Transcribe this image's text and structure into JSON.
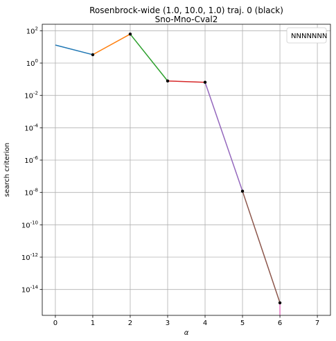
{
  "chart_data": {
    "type": "line",
    "title": "Rosenbrock-wide (1.0, 10.0, 1.0) traj. 0 (black)",
    "subtitle": "Sno-Mno-Cval2",
    "xlabel": "α",
    "ylabel": "search criterion",
    "yscale": "log",
    "xlim": [
      -0.35,
      7.35
    ],
    "ylim_log10": [
      -15.6,
      2.4
    ],
    "grid": true,
    "legend": {
      "placement": "top-right",
      "label": "NNNNNNN"
    },
    "x_ticks": [
      "0",
      "1",
      "2",
      "3",
      "4",
      "5",
      "6",
      "7"
    ],
    "y_ticks": [
      {
        "exp": 2,
        "label": "10",
        "sup": "2"
      },
      {
        "exp": 0,
        "label": "10",
        "sup": "0"
      },
      {
        "exp": -2,
        "label": "10",
        "sup": "-2"
      },
      {
        "exp": -4,
        "label": "10",
        "sup": "-4"
      },
      {
        "exp": -6,
        "label": "10",
        "sup": "-6"
      },
      {
        "exp": -8,
        "label": "10",
        "sup": "-8"
      },
      {
        "exp": -10,
        "label": "10",
        "sup": "-10"
      },
      {
        "exp": -12,
        "label": "10",
        "sup": "-12"
      },
      {
        "exp": -14,
        "label": "10",
        "sup": "-14"
      }
    ],
    "points": [
      {
        "x": 0,
        "y": 13,
        "marker": false
      },
      {
        "x": 1,
        "y": 3.3,
        "marker": true
      },
      {
        "x": 2,
        "y": 62,
        "marker": true
      },
      {
        "x": 3,
        "y": 0.078,
        "marker": true
      },
      {
        "x": 4,
        "y": 0.065,
        "marker": true
      },
      {
        "x": 5,
        "y": 1.2e-08,
        "marker": true
      },
      {
        "x": 6,
        "y": 1.5e-15,
        "marker": true
      }
    ],
    "segment_colors": [
      "#1f77b4",
      "#ff7f0e",
      "#2ca02c",
      "#d62728",
      "#9467bd",
      "#8c564b"
    ],
    "tail": {
      "color": "#e377c2",
      "x": 6,
      "to_y": 1e-16
    }
  }
}
